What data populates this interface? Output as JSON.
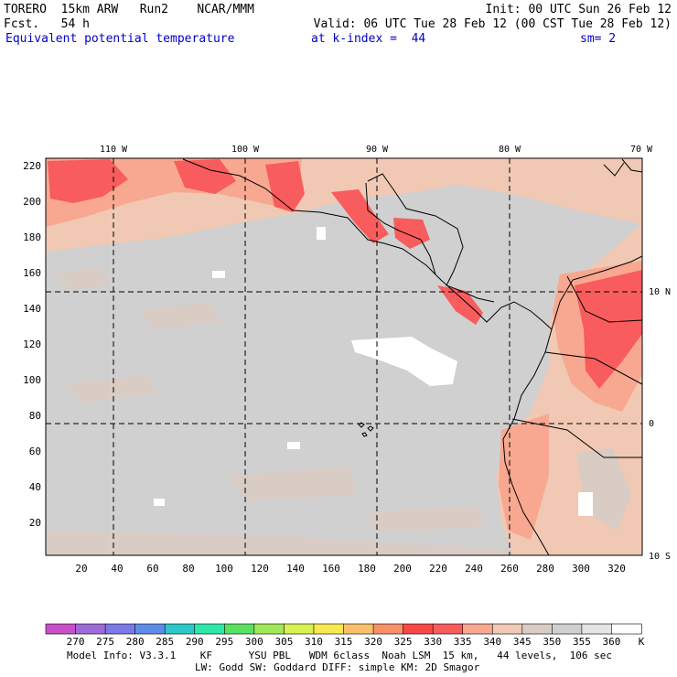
{
  "header": {
    "model": "TORERO  15km ARW   Run2    NCAR/MMM",
    "init": "Init: 00 UTC Sun 26 Feb 12",
    "fcst": "Fcst.   54 h",
    "valid": "Valid: 06 UTC Tue 28 Feb 12 (00 CST Tue 28 Feb 12)",
    "field": "Equivalent potential temperature",
    "level": "at k-index =  44",
    "smooth": "sm= 2"
  },
  "map": {
    "lon_labels": [
      "110 W",
      "100 W",
      "90 W",
      "80 W",
      "70 W"
    ],
    "lat_labels": [
      "10 N",
      "0",
      "10 S"
    ],
    "y_ticks": [
      "220",
      "200",
      "180",
      "160",
      "140",
      "120",
      "100",
      "80",
      "60",
      "40",
      "20"
    ],
    "x_ticks": [
      "20",
      "40",
      "60",
      "80",
      "100",
      "120",
      "140",
      "160",
      "180",
      "200",
      "220",
      "240",
      "260",
      "280",
      "300",
      "320"
    ]
  },
  "colorbar": {
    "levels": [
      "270",
      "275",
      "280",
      "285",
      "290",
      "295",
      "300",
      "305",
      "310",
      "315",
      "320",
      "325",
      "330",
      "335",
      "340",
      "345",
      "350",
      "355",
      "360"
    ],
    "unit": "K",
    "colors": [
      "#c84fc8",
      "#9c6bd8",
      "#7c78e8",
      "#5c8ce8",
      "#2cc8c8",
      "#2ce8a8",
      "#58e060",
      "#a0e858",
      "#d8f050",
      "#f8e850",
      "#f8c068",
      "#f89068",
      "#f84848",
      "#f85c5c",
      "#f8a890",
      "#f0c8b4",
      "#d8ccc4",
      "#d0d0d0",
      "#e4e4e4",
      "#ffffff"
    ]
  },
  "footer": {
    "line1": "Model Info: V3.3.1    KF      YSU PBL   WDM 6class  Noah LSM  15 km,   44 levels,  106 sec",
    "line2": "LW: Godd SW: Goddard DIFF: simple KM: 2D Smagor"
  }
}
